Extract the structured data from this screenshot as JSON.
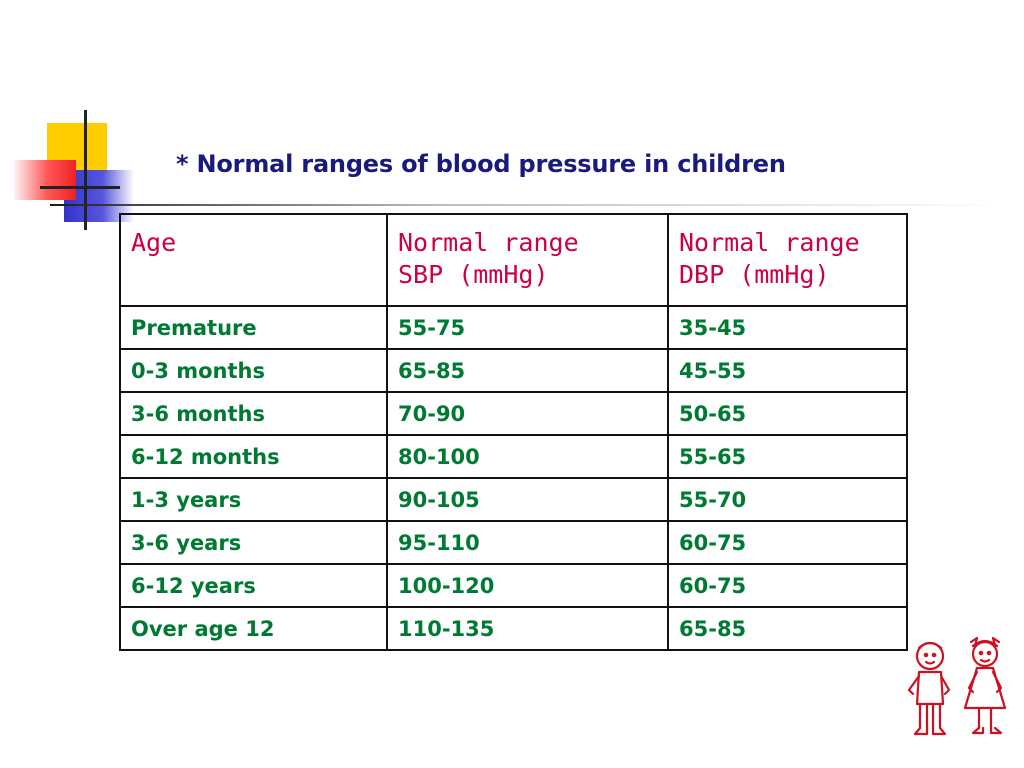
{
  "slide": {
    "title": "* Normal ranges of blood pressure in children"
  },
  "table": {
    "headers": [
      "Age",
      "Normal range\n SBP (mmHg)",
      "Normal range\nDBP (mmHg)"
    ],
    "rows": [
      [
        "Premature",
        "55-75",
        "35-45"
      ],
      [
        "0-3 months",
        "65-85",
        "45-55"
      ],
      [
        "3-6 months",
        "70-90",
        "50-65"
      ],
      [
        "6-12 months",
        "80-100",
        "55-65"
      ],
      [
        "1-3 years",
        "90-105",
        "55-70"
      ],
      [
        "3-6 years",
        "95-110",
        "60-75"
      ],
      [
        "6-12 years",
        "100-120",
        "60-75"
      ],
      [
        "Over age 12",
        "110-135",
        "65-85"
      ]
    ]
  },
  "colors": {
    "title": "#1a1a7a",
    "header_text": "#cc0044",
    "cell_text": "#007a33",
    "accent_yellow": "#ffcc00",
    "accent_blue": "#3333cc",
    "accent_red": "#ff5555"
  },
  "icons": [
    "decorative-squares-icon",
    "children-clipart-icon"
  ]
}
